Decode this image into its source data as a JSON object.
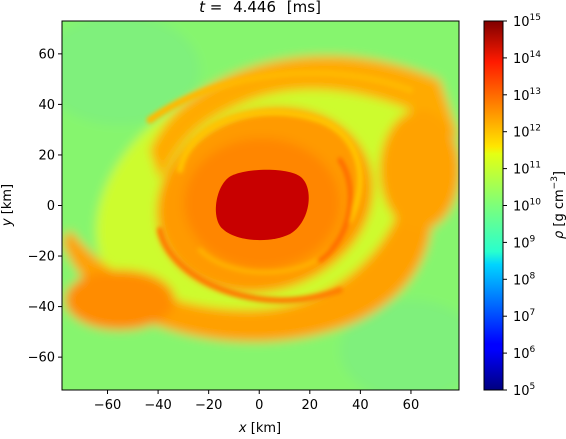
{
  "chart_data": {
    "type": "heatmap",
    "title_prefix": "t =",
    "title_value": "4.446",
    "title_unit": "[ms]",
    "xlabel_var": "x",
    "xlabel_unit": " [km]",
    "ylabel_var": "y",
    "ylabel_unit": " [km]",
    "xlim": [
      -78,
      79
    ],
    "ylim": [
      -73,
      73
    ],
    "x_ticks": [
      -60,
      -40,
      -20,
      0,
      20,
      40,
      60
    ],
    "y_ticks": [
      60,
      40,
      20,
      0,
      -20,
      -40,
      -60
    ],
    "x_tick_labels": [
      "−60",
      "−40",
      "−20",
      "0",
      "20",
      "40",
      "60"
    ],
    "y_tick_labels": [
      "60",
      "40",
      "20",
      "0",
      "−20",
      "−40",
      "−60"
    ],
    "colorbar": {
      "label_var": "ρ",
      "label_unit": " [g cm",
      "label_sup": "−3",
      "label_close": "]",
      "scale": "log",
      "range": [
        5,
        15
      ],
      "ticks": [
        {
          "exp": 15,
          "base": "10",
          "sup": "15"
        },
        {
          "exp": 14,
          "base": "10",
          "sup": "14"
        },
        {
          "exp": 13,
          "base": "10",
          "sup": "13"
        },
        {
          "exp": 12,
          "base": "10",
          "sup": "12"
        },
        {
          "exp": 11,
          "base": "10",
          "sup": "11"
        },
        {
          "exp": 10,
          "base": "10",
          "sup": "10"
        },
        {
          "exp": 9,
          "base": "10",
          "sup": "9"
        },
        {
          "exp": 8,
          "base": "10",
          "sup": "8"
        },
        {
          "exp": 7,
          "base": "10",
          "sup": "7"
        },
        {
          "exp": 6,
          "base": "10",
          "sup": "6"
        },
        {
          "exp": 5,
          "base": "10",
          "sup": "5"
        }
      ],
      "colormap": "jet"
    },
    "features": {
      "core_density_log10": 14.7,
      "core_center_km": [
        0,
        0
      ],
      "core_radius_km": [
        24,
        14
      ],
      "disk_density_log10": 12.0,
      "background_density_log10": 9.8,
      "spiral_arms": 2
    }
  }
}
